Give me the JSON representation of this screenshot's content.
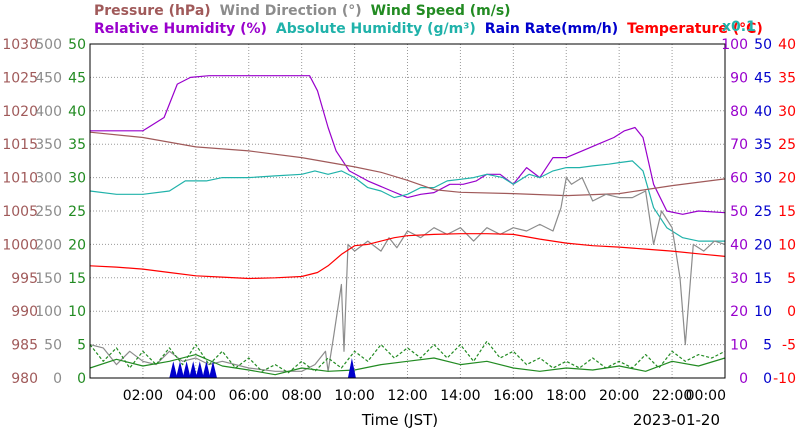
{
  "chart_data": {
    "type": "line",
    "title_row1": [
      {
        "text": "Pressure (hPa)",
        "color": "#a05a5a"
      },
      {
        "text": "Wind Direction (°)",
        "color": "#8c8c8c"
      },
      {
        "text": "Wind Speed (m/s)",
        "color": "#228b22"
      }
    ],
    "title_row2": [
      {
        "text": "Relative Humidity (%)",
        "color": "#9900cc"
      },
      {
        "text": "Absolute Humidity (g/m³)",
        "color": "#20b2aa"
      },
      {
        "text": "Rain Rate(mm/h)",
        "color": "#0000cc"
      },
      {
        "text": "Temperature (°C)",
        "color": "#ff0000"
      }
    ],
    "scale_note": "x0.1",
    "xlabel": "Time (JST)",
    "date": "2023-01-20",
    "xlim": [
      0,
      24
    ],
    "x_ticks": [
      2,
      4,
      6,
      8,
      10,
      12,
      14,
      16,
      18,
      20,
      22,
      24
    ],
    "x_tick_labels": [
      "02:00",
      "04:00",
      "06:00",
      "08:00",
      "10:00",
      "12:00",
      "14:00",
      "16:00",
      "18:00",
      "20:00",
      "22:00",
      "00:00"
    ],
    "y_axes": {
      "pressure": {
        "color": "#a05a5a",
        "labels": [
          "980",
          "985",
          "990",
          "995",
          "1000",
          "1005",
          "1010",
          "1015",
          "1020",
          "1025",
          "1030"
        ]
      },
      "wind_direction": {
        "color": "#8c8c8c",
        "labels": [
          "0",
          "50",
          "100",
          "150",
          "200",
          "250",
          "300",
          "350",
          "400",
          "450",
          "500"
        ]
      },
      "wind_speed": {
        "color": "#228b22",
        "labels": [
          "0",
          "5",
          "10",
          "15",
          "20",
          "25",
          "30",
          "35",
          "40",
          "45",
          "50"
        ]
      },
      "humidity": {
        "color": "#9900cc",
        "labels": [
          "0",
          "10",
          "20",
          "30",
          "40",
          "50",
          "60",
          "70",
          "80",
          "90",
          "100"
        ]
      },
      "rain_rate": {
        "color": "#0000cc",
        "labels": [
          "0",
          "5",
          "10",
          "15",
          "20",
          "25",
          "30",
          "35",
          "40",
          "45",
          "50"
        ]
      },
      "temperature": {
        "color": "#ff0000",
        "labels": [
          "-10",
          "-5",
          "0",
          "5",
          "10",
          "15",
          "20",
          "25",
          "30",
          "35",
          "40"
        ]
      }
    },
    "grid": true,
    "series": [
      {
        "name": "Relative Humidity (%)",
        "color": "#9900cc",
        "scale": "humidity",
        "ylim": [
          0,
          100
        ],
        "points": [
          [
            0,
            74
          ],
          [
            2,
            74
          ],
          [
            2.8,
            78
          ],
          [
            3.3,
            88
          ],
          [
            3.8,
            90
          ],
          [
            4.5,
            90.5
          ],
          [
            6,
            90.5
          ],
          [
            8,
            90.5
          ],
          [
            8.3,
            90.5
          ],
          [
            8.6,
            86
          ],
          [
            9,
            75
          ],
          [
            9.3,
            68
          ],
          [
            9.8,
            62
          ],
          [
            10.5,
            59
          ],
          [
            11.4,
            56
          ],
          [
            12,
            54
          ],
          [
            12.5,
            55
          ],
          [
            13,
            55.5
          ],
          [
            13.6,
            58
          ],
          [
            14.1,
            58
          ],
          [
            14.6,
            59
          ],
          [
            15,
            61
          ],
          [
            15.5,
            61
          ],
          [
            16,
            58
          ],
          [
            16.5,
            63
          ],
          [
            17,
            60
          ],
          [
            17.5,
            66
          ],
          [
            18,
            66
          ],
          [
            18.6,
            68
          ],
          [
            19.2,
            70
          ],
          [
            19.8,
            72
          ],
          [
            20.2,
            74
          ],
          [
            20.6,
            75
          ],
          [
            20.9,
            72
          ],
          [
            21.3,
            58
          ],
          [
            21.8,
            50
          ],
          [
            22.4,
            49
          ],
          [
            23,
            50
          ],
          [
            24,
            49.5
          ]
        ]
      },
      {
        "name": "Absolute Humidity (g/m³)",
        "color": "#20b2aa",
        "scale": "humidity",
        "ylim": [
          0,
          100
        ],
        "points": [
          [
            0,
            56
          ],
          [
            1,
            55
          ],
          [
            2,
            55
          ],
          [
            3,
            56
          ],
          [
            3.6,
            59
          ],
          [
            4.4,
            59
          ],
          [
            5,
            60
          ],
          [
            5.5,
            60
          ],
          [
            6,
            60
          ],
          [
            7,
            60.5
          ],
          [
            8,
            61
          ],
          [
            8.5,
            62
          ],
          [
            9,
            61
          ],
          [
            9.5,
            62
          ],
          [
            10,
            60
          ],
          [
            10.5,
            57
          ],
          [
            11,
            56
          ],
          [
            11.5,
            54
          ],
          [
            12,
            55
          ],
          [
            12.5,
            57
          ],
          [
            13,
            57
          ],
          [
            13.5,
            59
          ],
          [
            14,
            59.5
          ],
          [
            14.5,
            60
          ],
          [
            15,
            61
          ],
          [
            15.6,
            60
          ],
          [
            16,
            58
          ],
          [
            16.6,
            61
          ],
          [
            17,
            60
          ],
          [
            17.5,
            62
          ],
          [
            18,
            63
          ],
          [
            18.5,
            63
          ],
          [
            19,
            63.5
          ],
          [
            19.6,
            64
          ],
          [
            20,
            64.5
          ],
          [
            20.5,
            65
          ],
          [
            20.9,
            62
          ],
          [
            21.3,
            51
          ],
          [
            21.8,
            45
          ],
          [
            22.4,
            42
          ],
          [
            23,
            41
          ],
          [
            24,
            41
          ]
        ]
      },
      {
        "name": "Pressure (hPa)",
        "color": "#a05a5a",
        "scale": "pressure",
        "ylim": [
          980,
          1030
        ],
        "points": [
          [
            0,
            1016.8
          ],
          [
            2,
            1016
          ],
          [
            4,
            1014.6
          ],
          [
            6,
            1014
          ],
          [
            8,
            1013
          ],
          [
            10,
            1011.6
          ],
          [
            11,
            1010.8
          ],
          [
            12,
            1009.6
          ],
          [
            13,
            1008.2
          ],
          [
            14,
            1007.8
          ],
          [
            16,
            1007.6
          ],
          [
            18,
            1007.3
          ],
          [
            20,
            1007.6
          ],
          [
            22,
            1008.8
          ],
          [
            24,
            1009.8
          ]
        ]
      },
      {
        "name": "Temperature (°C)",
        "color": "#ff0000",
        "scale": "temperature",
        "ylim": [
          -10,
          40
        ],
        "points": [
          [
            0,
            6.8
          ],
          [
            1,
            6.6
          ],
          [
            2,
            6.3
          ],
          [
            3,
            5.8
          ],
          [
            4,
            5.3
          ],
          [
            5,
            5.1
          ],
          [
            6,
            4.9
          ],
          [
            7,
            5
          ],
          [
            8,
            5.2
          ],
          [
            8.6,
            5.8
          ],
          [
            9,
            6.8
          ],
          [
            9.5,
            8.5
          ],
          [
            10,
            9.8
          ],
          [
            10.5,
            10
          ],
          [
            11,
            10.5
          ],
          [
            11.5,
            11
          ],
          [
            12,
            11.3
          ],
          [
            13,
            11.5
          ],
          [
            14,
            11.6
          ],
          [
            15,
            11.6
          ],
          [
            16,
            11.5
          ],
          [
            17,
            10.8
          ],
          [
            18,
            10.2
          ],
          [
            19,
            9.8
          ],
          [
            20,
            9.6
          ],
          [
            21,
            9.3
          ],
          [
            22,
            9
          ],
          [
            23,
            8.6
          ],
          [
            24,
            8.2
          ]
        ]
      },
      {
        "name": "Wind Direction (°)",
        "color": "#8c8c8c",
        "scale": "wind_direction",
        "ylim": [
          0,
          500
        ],
        "points": [
          [
            0,
            50
          ],
          [
            0.5,
            45
          ],
          [
            1,
            20
          ],
          [
            1.5,
            40
          ],
          [
            2,
            25
          ],
          [
            2.5,
            20
          ],
          [
            3,
            40
          ],
          [
            3.5,
            25
          ],
          [
            4,
            30
          ],
          [
            4.5,
            20
          ],
          [
            5,
            25
          ],
          [
            6,
            15
          ],
          [
            7,
            10
          ],
          [
            8,
            10
          ],
          [
            8.5,
            20
          ],
          [
            8.9,
            40
          ],
          [
            9,
            10
          ],
          [
            9.2,
            60
          ],
          [
            9.5,
            140
          ],
          [
            9.6,
            40
          ],
          [
            9.75,
            200
          ],
          [
            10,
            190
          ],
          [
            10.5,
            205
          ],
          [
            11,
            190
          ],
          [
            11.3,
            210
          ],
          [
            11.6,
            195
          ],
          [
            12,
            220
          ],
          [
            12.5,
            210
          ],
          [
            13,
            225
          ],
          [
            13.5,
            215
          ],
          [
            14,
            225
          ],
          [
            14.5,
            205
          ],
          [
            15,
            225
          ],
          [
            15.5,
            215
          ],
          [
            16,
            225
          ],
          [
            16.5,
            220
          ],
          [
            17,
            230
          ],
          [
            17.5,
            220
          ],
          [
            17.8,
            255
          ],
          [
            18,
            300
          ],
          [
            18.2,
            290
          ],
          [
            18.6,
            300
          ],
          [
            19,
            265
          ],
          [
            19.5,
            275
          ],
          [
            20,
            270
          ],
          [
            20.5,
            270
          ],
          [
            21,
            280
          ],
          [
            21.3,
            200
          ],
          [
            21.6,
            250
          ],
          [
            22,
            225
          ],
          [
            22.3,
            150
          ],
          [
            22.5,
            50
          ],
          [
            22.8,
            200
          ],
          [
            23.2,
            190
          ],
          [
            23.6,
            205
          ],
          [
            24,
            200
          ]
        ]
      },
      {
        "name": "Wind Speed (m/s)",
        "color": "#228b22",
        "scale": "wind_speed",
        "ylim": [
          0,
          50
        ],
        "points": [
          [
            0,
            1.5
          ],
          [
            1,
            2.8
          ],
          [
            2,
            1.8
          ],
          [
            3,
            2.5
          ],
          [
            4,
            3.5
          ],
          [
            5,
            1.8
          ],
          [
            6,
            1.2
          ],
          [
            7,
            0.5
          ],
          [
            8,
            1.5
          ],
          [
            9,
            1
          ],
          [
            10,
            1.2
          ],
          [
            11,
            2
          ],
          [
            12,
            2.5
          ],
          [
            13,
            3
          ],
          [
            14,
            2
          ],
          [
            15,
            2.5
          ],
          [
            16,
            1.5
          ],
          [
            17,
            1
          ],
          [
            18,
            1.5
          ],
          [
            19,
            1.2
          ],
          [
            20,
            1.8
          ],
          [
            21,
            1
          ],
          [
            22,
            2.5
          ],
          [
            23,
            1.8
          ],
          [
            24,
            3
          ]
        ]
      },
      {
        "name": "Wind Speed (m/s)",
        "color": "#228b22",
        "scale": "wind_speed",
        "ylim": [
          0,
          50
        ],
        "points": [
          [
            0,
            5
          ],
          [
            0.5,
            2.5
          ],
          [
            1,
            4.5
          ],
          [
            1.5,
            1.5
          ],
          [
            2,
            4
          ],
          [
            2.5,
            2
          ],
          [
            3,
            4.5
          ],
          [
            3.5,
            2
          ],
          [
            4,
            5
          ],
          [
            4.5,
            2
          ],
          [
            5,
            4
          ],
          [
            5.5,
            1.5
          ],
          [
            6,
            3
          ],
          [
            6.5,
            1
          ],
          [
            7,
            2
          ],
          [
            7.5,
            0.8
          ],
          [
            8,
            2.5
          ],
          [
            8.5,
            1
          ],
          [
            9,
            3
          ],
          [
            9.5,
            1.5
          ],
          [
            10,
            4
          ],
          [
            10.5,
            2.5
          ],
          [
            11,
            5
          ],
          [
            11.5,
            3
          ],
          [
            12,
            4.5
          ],
          [
            12.5,
            3
          ],
          [
            13,
            5
          ],
          [
            13.5,
            3
          ],
          [
            14,
            5
          ],
          [
            14.5,
            2.5
          ],
          [
            15,
            5.5
          ],
          [
            15.5,
            3
          ],
          [
            16,
            4
          ],
          [
            16.5,
            2
          ],
          [
            17,
            3
          ],
          [
            17.5,
            1.5
          ],
          [
            18,
            2.5
          ],
          [
            18.5,
            1.5
          ],
          [
            19,
            3
          ],
          [
            19.5,
            1.5
          ],
          [
            20,
            2.5
          ],
          [
            20.5,
            1.5
          ],
          [
            21,
            3.5
          ],
          [
            21.5,
            1.5
          ],
          [
            22,
            4
          ],
          [
            22.5,
            2.5
          ],
          [
            23,
            3.5
          ],
          [
            23.5,
            3
          ],
          [
            24,
            4
          ]
        ]
      }
    ],
    "rain_rate": {
      "name": "Rain Rate(mm/h)",
      "color": "#0000cc",
      "scale": "rain_rate",
      "ylim": [
        0,
        50
      ],
      "events": [
        [
          3.15,
          2.5
        ],
        [
          3.4,
          2.5
        ],
        [
          3.65,
          2.5
        ],
        [
          3.9,
          2.5
        ],
        [
          4.15,
          2.5
        ],
        [
          4.4,
          2.5
        ],
        [
          4.65,
          2.5
        ],
        [
          9.9,
          3
        ]
      ]
    }
  }
}
